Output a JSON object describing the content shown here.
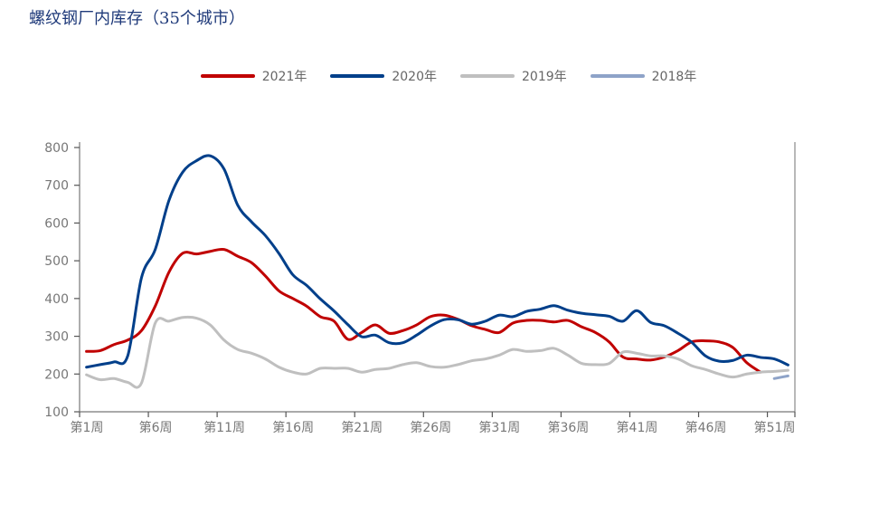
{
  "chart_data": {
    "type": "line",
    "title": "螺纹钢厂内库存（35个城市）",
    "xlabel": "",
    "ylabel": "",
    "ylim": [
      100,
      800
    ],
    "yticks": [
      100,
      200,
      300,
      400,
      500,
      600,
      700,
      800
    ],
    "x_count": 52,
    "xtick_labels": [
      {
        "week": 1,
        "label": "第1周"
      },
      {
        "week": 6,
        "label": "第6周"
      },
      {
        "week": 11,
        "label": "第11周"
      },
      {
        "week": 16,
        "label": "第16周"
      },
      {
        "week": 21,
        "label": "第21周"
      },
      {
        "week": 26,
        "label": "第26周"
      },
      {
        "week": 31,
        "label": "第31周"
      },
      {
        "week": 36,
        "label": "第36周"
      },
      {
        "week": 41,
        "label": "第41周"
      },
      {
        "week": 46,
        "label": "第46周"
      },
      {
        "week": 51,
        "label": "第51周"
      }
    ],
    "legend_position": "top-center",
    "series": [
      {
        "name": "2021年",
        "color": "#c00000",
        "start_week": 1,
        "values": [
          260,
          262,
          278,
          290,
          315,
          380,
          470,
          520,
          518,
          525,
          530,
          512,
          495,
          460,
          420,
          400,
          380,
          352,
          340,
          292,
          310,
          330,
          308,
          315,
          330,
          352,
          356,
          345,
          328,
          318,
          310,
          335,
          342,
          342,
          338,
          342,
          325,
          310,
          285,
          245,
          240,
          237,
          245,
          262,
          285,
          288,
          285,
          270,
          230,
          205
        ]
      },
      {
        "name": "2020年",
        "color": "#003f8a",
        "start_week": 1,
        "values": [
          218,
          225,
          232,
          248,
          455,
          530,
          660,
          735,
          765,
          778,
          743,
          647,
          603,
          567,
          519,
          463,
          435,
          399,
          367,
          331,
          299,
          303,
          283,
          283,
          303,
          327,
          344,
          344,
          332,
          340,
          356,
          352,
          366,
          372,
          381,
          369,
          361,
          357,
          353,
          340,
          368,
          337,
          328,
          308,
          284,
          248,
          234,
          236,
          250,
          244,
          240,
          224
        ]
      },
      {
        "name": "2019年",
        "color": "#bfbfbf",
        "start_week": 1,
        "values": [
          198,
          185,
          188,
          178,
          176,
          335,
          340,
          350,
          348,
          330,
          290,
          265,
          255,
          240,
          218,
          205,
          200,
          215,
          215,
          215,
          205,
          212,
          215,
          225,
          230,
          220,
          218,
          225,
          235,
          240,
          250,
          265,
          260,
          262,
          268,
          250,
          228,
          225,
          228,
          258,
          255,
          248,
          248,
          240,
          222,
          212,
          200,
          192,
          200,
          205,
          207,
          210
        ]
      },
      {
        "name": "2018年",
        "color": "#8ea3c8",
        "start_week": 51,
        "values": [
          188,
          195
        ]
      }
    ]
  }
}
